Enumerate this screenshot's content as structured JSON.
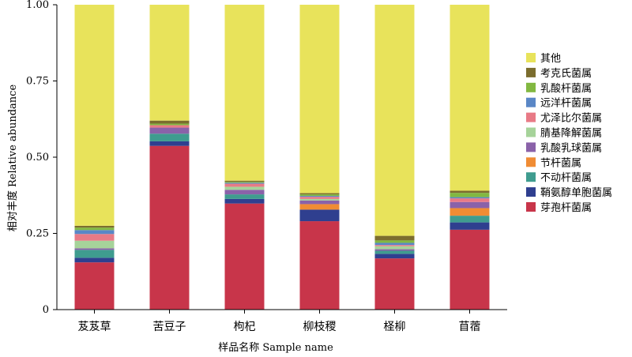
{
  "chart_data": {
    "type": "bar",
    "stacked": true,
    "title": "",
    "xlabel": "样品名称 Sample name",
    "ylabel": "相对丰度 Relative abundance",
    "ylim": [
      0,
      1
    ],
    "yticks": [
      "0",
      "0.25",
      "0.50",
      "0.75",
      "1.00"
    ],
    "ytick_values": [
      0,
      0.25,
      0.5,
      0.75,
      1.0
    ],
    "grid": false,
    "legend_position": "right",
    "categories": [
      "芨芨草",
      "苦豆子",
      "枸杞",
      "柳枝稷",
      "柽柳",
      "苜蓿"
    ],
    "series": [
      {
        "name": "芽孢杆菌属",
        "color": "#c8354a",
        "values": [
          0.155,
          0.537,
          0.348,
          0.29,
          0.168,
          0.262
        ]
      },
      {
        "name": "鞘氨醇单胞菌属",
        "color": "#2f3f8f",
        "values": [
          0.015,
          0.015,
          0.015,
          0.038,
          0.015,
          0.024
        ]
      },
      {
        "name": "不动杆菌属",
        "color": "#3f9c8f",
        "values": [
          0.026,
          0.025,
          0.015,
          0.0,
          0.01,
          0.022
        ]
      },
      {
        "name": "节杆菌属",
        "color": "#f08c34",
        "values": [
          0.0,
          0.0,
          0.0,
          0.018,
          0.0,
          0.025
        ]
      },
      {
        "name": "乳酸乳球菌属",
        "color": "#8a62a9",
        "values": [
          0.005,
          0.02,
          0.015,
          0.012,
          0.005,
          0.02
        ]
      },
      {
        "name": "腈基降解菌属",
        "color": "#a6d39a",
        "values": [
          0.025,
          0.0,
          0.01,
          0.005,
          0.01,
          0.0
        ]
      },
      {
        "name": "尤泽比尔菌属",
        "color": "#e87a86",
        "values": [
          0.022,
          0.008,
          0.01,
          0.007,
          0.004,
          0.012
        ]
      },
      {
        "name": "远洋杆菌属",
        "color": "#5a87c6",
        "values": [
          0.013,
          0.0,
          0.003,
          0.003,
          0.007,
          0.004
        ]
      },
      {
        "name": "乳酸杆菌属",
        "color": "#82b841",
        "values": [
          0.008,
          0.005,
          0.003,
          0.005,
          0.008,
          0.014
        ]
      },
      {
        "name": "考克氏菌属",
        "color": "#7b6d2e",
        "values": [
          0.006,
          0.01,
          0.004,
          0.004,
          0.015,
          0.007
        ]
      },
      {
        "name": "其他",
        "color": "#e8e35b",
        "values": [
          0.725,
          0.38,
          0.577,
          0.618,
          0.758,
          0.61
        ]
      }
    ]
  }
}
